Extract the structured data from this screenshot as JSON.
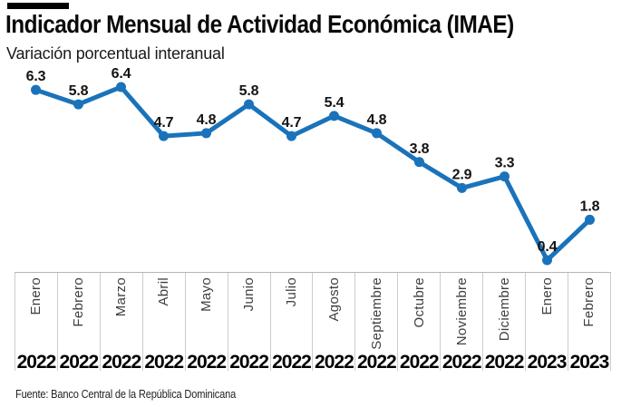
{
  "header": {
    "title": "Indicador Mensual de Actividad Económica (IMAE)",
    "subtitle": "Variación porcentual interanual"
  },
  "chart_data": {
    "type": "line",
    "title": "Indicador Mensual de Actividad Económica (IMAE)",
    "subtitle": "Variación porcentual interanual",
    "categories": [
      {
        "month": "Enero",
        "year": "2022"
      },
      {
        "month": "Febrero",
        "year": "2022"
      },
      {
        "month": "Marzo",
        "year": "2022"
      },
      {
        "month": "Abril",
        "year": "2022"
      },
      {
        "month": "Mayo",
        "year": "2022"
      },
      {
        "month": "Junio",
        "year": "2022"
      },
      {
        "month": "Julio",
        "year": "2022"
      },
      {
        "month": "Agosto",
        "year": "2022"
      },
      {
        "month": "Septiembre",
        "year": "2022"
      },
      {
        "month": "Octubre",
        "year": "2022"
      },
      {
        "month": "Noviembre",
        "year": "2022"
      },
      {
        "month": "Diciembre",
        "year": "2022"
      },
      {
        "month": "Enero",
        "year": "2023"
      },
      {
        "month": "Febrero",
        "year": "2023"
      }
    ],
    "values": [
      6.3,
      5.8,
      6.4,
      4.7,
      4.8,
      5.8,
      4.7,
      5.4,
      4.8,
      3.8,
      2.9,
      3.3,
      0.4,
      1.8
    ],
    "line_color": "#1a73ba",
    "marker": "circle",
    "data_labels": true,
    "grid": false,
    "legend": "none",
    "ylim": [
      0,
      7
    ]
  },
  "colors": {
    "kicker_bar": "#000000",
    "axis_divider": "#cccccc",
    "axis_top_border": "#b5b5b5"
  },
  "footer": {
    "source": "Fuente: Banco Central de la República Dominicana"
  }
}
